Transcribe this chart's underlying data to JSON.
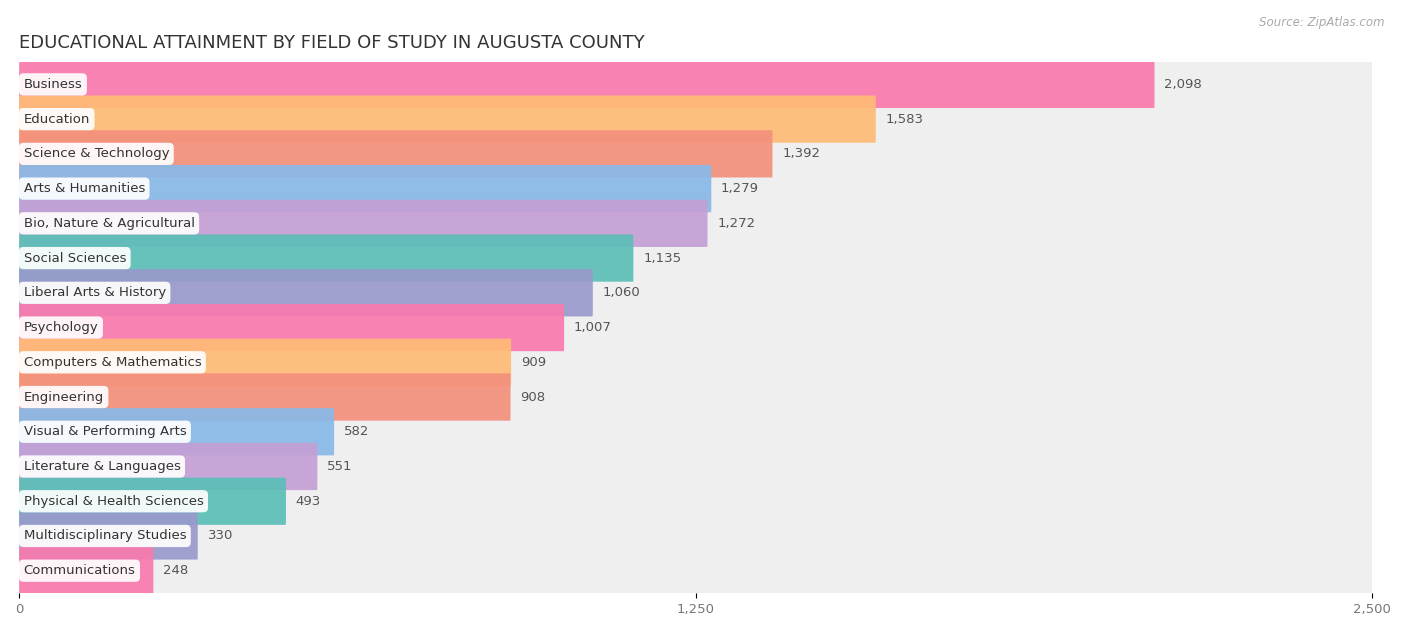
{
  "title": "EDUCATIONAL ATTAINMENT BY FIELD OF STUDY IN AUGUSTA COUNTY",
  "source": "Source: ZipAtlas.com",
  "categories": [
    "Business",
    "Education",
    "Science & Technology",
    "Arts & Humanities",
    "Bio, Nature & Agricultural",
    "Social Sciences",
    "Liberal Arts & History",
    "Psychology",
    "Computers & Mathematics",
    "Engineering",
    "Visual & Performing Arts",
    "Literature & Languages",
    "Physical & Health Sciences",
    "Multidisciplinary Studies",
    "Communications"
  ],
  "values": [
    2098,
    1583,
    1392,
    1279,
    1272,
    1135,
    1060,
    1007,
    909,
    908,
    582,
    551,
    493,
    330,
    248
  ],
  "bar_colors": [
    "#F97AAE",
    "#FFBB77",
    "#F4907C",
    "#88B8E8",
    "#C49FD4",
    "#5BBFB8",
    "#9999CC",
    "#F97AAE",
    "#FFBB77",
    "#F4907C",
    "#88B8E8",
    "#C49FD4",
    "#5BBFB8",
    "#9999CC",
    "#F97AAE"
  ],
  "xlim": [
    0,
    2500
  ],
  "xticks": [
    0,
    1250,
    2500
  ],
  "background_color": "#ffffff",
  "bar_bg_color": "#efefef",
  "title_fontsize": 13,
  "label_fontsize": 9.5,
  "value_fontsize": 9.5,
  "value_threshold": 1200
}
